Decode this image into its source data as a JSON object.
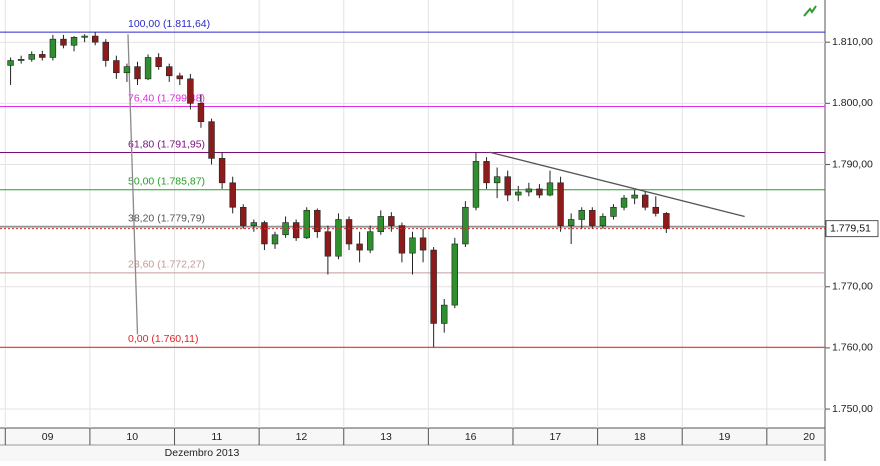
{
  "chart_data": {
    "type": "candlestick",
    "xlim": [
      -1,
      77
    ],
    "ylim": [
      1.7469,
      1.8169
    ],
    "grid": true,
    "up_color": "#2f8f2f",
    "down_color": "#8e1b1b",
    "xticks": [
      {
        "value": 3.5,
        "label": "09"
      },
      {
        "value": 11.5,
        "label": "10"
      },
      {
        "value": 19.5,
        "label": "11"
      },
      {
        "value": 27.5,
        "label": "12"
      },
      {
        "value": 35.5,
        "label": "13"
      },
      {
        "value": 43.5,
        "label": "16"
      },
      {
        "value": 51.5,
        "label": "17"
      },
      {
        "value": 59.5,
        "label": "18"
      },
      {
        "value": 67.5,
        "label": "19"
      },
      {
        "value": 75.5,
        "label": "20"
      }
    ],
    "x_group_label": "Dezembro 2013",
    "yticks": [
      {
        "value": 1.81,
        "label": "1.810,00"
      },
      {
        "value": 1.8,
        "label": "1.800,00"
      },
      {
        "value": 1.79,
        "label": "1.790,00"
      },
      {
        "value": 1.78,
        "label": "1.780,00"
      },
      {
        "value": 1.77,
        "label": "1.770,00"
      },
      {
        "value": 1.76,
        "label": "1.760,00"
      },
      {
        "value": 1.75,
        "label": "1.750,00"
      }
    ],
    "levels": [
      {
        "label": "100,00 (1.811,64)",
        "value": 1.81164,
        "color": "#2a2ac8"
      },
      {
        "label": "76,40 (1.799,48)",
        "value": 1.79948,
        "color": "#e22ee2"
      },
      {
        "label": "61,80 (1.791,95)",
        "value": 1.79195,
        "color": "#7a0f7a"
      },
      {
        "label": "50,00 (1.785,87)",
        "value": 1.78587,
        "color": "#23a023"
      },
      {
        "label": "38,20 (1.779,79)",
        "value": 1.77979,
        "color": "#555555"
      },
      {
        "label": "23,60 (1.772,27)",
        "value": 1.77227,
        "color": "#c49a9a"
      },
      {
        "label": "0,00 (1.760,11)",
        "value": 1.76011,
        "color": "#e02222"
      }
    ],
    "price_line": {
      "value": 1.77951,
      "label": "1.779,51",
      "color": "#d03030"
    },
    "trendlines": [
      {
        "x": [
          11.1,
          12.0
        ],
        "y": [
          1.8113,
          1.7622
        ],
        "color": "#8a8a8a"
      },
      {
        "x": [
          45.3,
          69.4
        ],
        "y": [
          1.792,
          1.7815
        ],
        "color": "#555555"
      }
    ],
    "open": [
      1.8062,
      1.807,
      1.8072,
      1.808,
      1.8075,
      1.8105,
      1.8095,
      1.8108,
      1.811,
      1.81,
      1.807,
      1.805,
      1.806,
      1.804,
      1.8075,
      1.806,
      1.8045,
      1.804,
      1.8,
      1.797,
      1.791,
      1.787,
      1.783,
      1.78,
      1.7805,
      1.777,
      1.7785,
      1.7805,
      1.778,
      1.7825,
      1.779,
      1.775,
      1.781,
      1.777,
      1.776,
      1.779,
      1.7815,
      1.78,
      1.7755,
      1.778,
      1.776,
      1.764,
      1.767,
      1.777,
      1.783,
      1.7905,
      1.787,
      1.788,
      1.785,
      1.7855,
      1.786,
      1.785,
      1.787,
      1.78,
      1.781,
      1.7825,
      1.78,
      1.7815,
      1.783,
      1.7845,
      1.785,
      1.783,
      1.782
    ],
    "high": [
      1.8075,
      1.8078,
      1.8085,
      1.8086,
      1.8112,
      1.8112,
      1.811,
      1.8113,
      1.81164,
      1.8105,
      1.8078,
      1.8065,
      1.8068,
      1.808,
      1.8082,
      1.8065,
      1.805,
      1.8048,
      1.8015,
      1.7975,
      1.792,
      1.788,
      1.7835,
      1.781,
      1.7808,
      1.779,
      1.7815,
      1.781,
      1.783,
      1.7828,
      1.78,
      1.782,
      1.7815,
      1.779,
      1.78,
      1.7825,
      1.7822,
      1.7805,
      1.779,
      1.7795,
      1.7765,
      1.768,
      1.778,
      1.784,
      1.792,
      1.7912,
      1.7895,
      1.789,
      1.7865,
      1.787,
      1.7868,
      1.789,
      1.788,
      1.782,
      1.783,
      1.783,
      1.782,
      1.7835,
      1.785,
      1.7858,
      1.7855,
      1.7848,
      1.7822
    ],
    "low": [
      1.803,
      1.8065,
      1.8068,
      1.807,
      1.807,
      1.809,
      1.8085,
      1.81,
      1.8095,
      1.806,
      1.804,
      1.8035,
      1.803,
      1.8038,
      1.8055,
      1.8035,
      1.803,
      1.799,
      1.796,
      1.79,
      1.786,
      1.782,
      1.7795,
      1.779,
      1.776,
      1.7762,
      1.778,
      1.7775,
      1.7778,
      1.778,
      1.772,
      1.7745,
      1.776,
      1.774,
      1.7755,
      1.7785,
      1.779,
      1.774,
      1.772,
      1.774,
      1.7601,
      1.7625,
      1.7665,
      1.7765,
      1.7825,
      1.786,
      1.7845,
      1.784,
      1.784,
      1.7848,
      1.7845,
      1.7848,
      1.779,
      1.777,
      1.7795,
      1.7795,
      1.7795,
      1.781,
      1.7825,
      1.7835,
      1.7825,
      1.7815,
      1.7788
    ],
    "close": [
      1.807,
      1.8072,
      1.808,
      1.8075,
      1.8105,
      1.8095,
      1.8108,
      1.811,
      1.81,
      1.807,
      1.805,
      1.806,
      1.804,
      1.8075,
      1.806,
      1.8045,
      1.804,
      1.8,
      1.797,
      1.791,
      1.787,
      1.783,
      1.78,
      1.7805,
      1.777,
      1.7785,
      1.7805,
      1.778,
      1.7825,
      1.779,
      1.775,
      1.781,
      1.777,
      1.776,
      1.779,
      1.7815,
      1.78,
      1.7755,
      1.778,
      1.776,
      1.764,
      1.767,
      1.777,
      1.783,
      1.7905,
      1.787,
      1.788,
      1.785,
      1.7855,
      1.786,
      1.785,
      1.787,
      1.78,
      1.781,
      1.7825,
      1.78,
      1.7815,
      1.783,
      1.7845,
      1.785,
      1.783,
      1.782,
      1.77951
    ]
  }
}
